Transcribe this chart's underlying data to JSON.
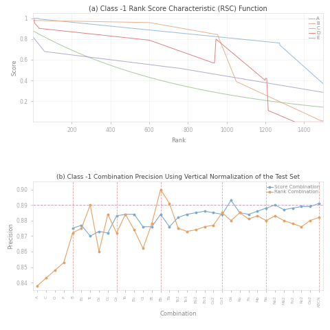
{
  "title_a": "(a) Class -1 Rank Score Characteristic (RSC) Function",
  "title_b": "(b) Class -1 Combination Precision Using Vertical Normalization of the Test Set",
  "xlabel_a": "Rank",
  "ylabel_a": "Score",
  "xlabel_b": "Combination",
  "ylabel_b": "Precision",
  "legend_a": [
    "A",
    "B",
    "C",
    "D",
    "E"
  ],
  "colors_a": [
    "#9ab8d8",
    "#e8b090",
    "#a8c8a0",
    "#e08080",
    "#b0a8d0"
  ],
  "legend_b": [
    "Score Combination",
    "Rank Combination"
  ],
  "colors_b": [
    "#7aaacc",
    "#e8a060"
  ],
  "hline_y": 0.89,
  "hline_color": "#c0a0c0",
  "vline_color_b": "#d08080",
  "combinations": [
    "A",
    "C",
    "O",
    "P",
    "B",
    "Bc",
    "Tc",
    "Oc",
    "Cc",
    "Co",
    "To",
    "Bo",
    "Ct",
    "Bt",
    "Bb",
    "Tb",
    "To2",
    "To3",
    "Bo2",
    "Bo3",
    "Co2",
    "Co3",
    "Oo",
    "Ro",
    "Fo",
    "Mo",
    "No",
    "No2",
    "Mo2",
    "Fo2",
    "Ro2",
    "Oo2",
    "ABCN"
  ],
  "score_comb": [
    null,
    null,
    null,
    null,
    0.875,
    0.877,
    0.87,
    0.873,
    0.872,
    0.883,
    0.884,
    0.884,
    0.876,
    0.876,
    0.884,
    0.876,
    0.882,
    0.884,
    0.885,
    0.886,
    0.885,
    0.884,
    0.893,
    0.885,
    0.884,
    0.886,
    0.888,
    0.89,
    0.887,
    0.888,
    0.889,
    0.889,
    0.891
  ],
  "rank_comb": [
    0.838,
    0.843,
    0.848,
    0.853,
    0.872,
    0.875,
    0.89,
    0.86,
    0.884,
    0.872,
    0.884,
    0.874,
    0.862,
    0.878,
    0.9,
    0.891,
    0.875,
    0.873,
    0.874,
    0.876,
    0.877,
    0.885,
    0.88,
    0.885,
    0.881,
    0.883,
    0.88,
    0.883,
    0.88,
    0.878,
    0.876,
    0.88,
    0.882
  ],
  "vlines_b": [
    4,
    9,
    14,
    21,
    26,
    32
  ],
  "xlim_a": [
    0,
    1500
  ],
  "ylim_a": [
    0,
    1.05
  ],
  "ylim_b": [
    0.835,
    0.905
  ],
  "yticks_b": [
    0.84,
    0.85,
    0.86,
    0.87,
    0.88,
    0.89,
    0.9
  ]
}
